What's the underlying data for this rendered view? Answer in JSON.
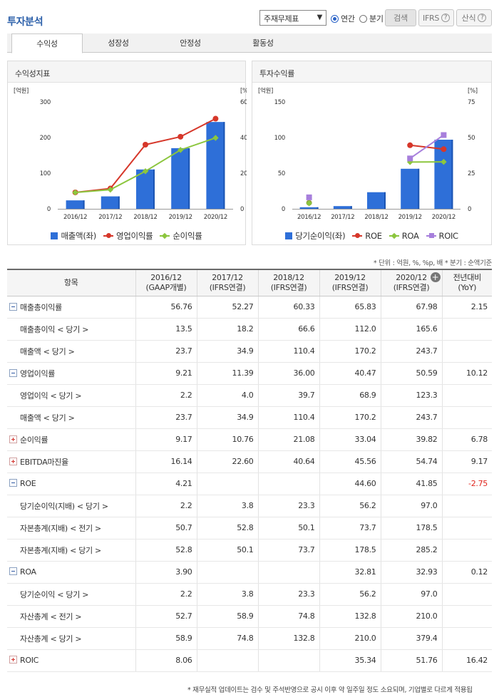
{
  "header": {
    "title": "투자분석",
    "select_value": "주재무제표",
    "radio_annual": "연간",
    "radio_quarter": "분기",
    "search_label": "검색",
    "ifrs_label": "IFRS",
    "formula_label": "산식"
  },
  "tabs": [
    "수익성",
    "성장성",
    "안정성",
    "활동성"
  ],
  "panels": {
    "left_title": "수익성지표",
    "right_title": "투자수익률"
  },
  "colors": {
    "bar": "#2e6fd8",
    "red": "#d6372a",
    "green": "#8cc63e",
    "purple": "#a77fdc",
    "olive": "#8c9a3a"
  },
  "chart_data": [
    {
      "type": "bar",
      "categories": [
        "2016/12",
        "2017/12",
        "2018/12",
        "2019/12",
        "2020/12"
      ],
      "left_unit": "[억원]",
      "right_unit": "[%]",
      "ylim_left": [
        0,
        300
      ],
      "ylim_right": [
        0,
        60
      ],
      "yticks_left": [
        0,
        100,
        200,
        300
      ],
      "yticks_right": [
        0,
        20,
        40,
        60
      ],
      "legend_position": "bottom",
      "bars": {
        "name": "매출액(좌)",
        "values": [
          23.7,
          34.9,
          110.4,
          170.2,
          243.7
        ]
      },
      "lines": [
        {
          "name": "영업이익률",
          "values": [
            9.21,
            11.39,
            36.0,
            40.47,
            50.59
          ],
          "color": "#d6372a",
          "marker": "circle"
        },
        {
          "name": "순이익률",
          "values": [
            9.17,
            10.76,
            21.08,
            33.04,
            39.82
          ],
          "color": "#8cc63e",
          "marker": "diamond"
        }
      ]
    },
    {
      "type": "bar",
      "categories": [
        "2016/12",
        "2017/12",
        "2018/12",
        "2019/12",
        "2020/12"
      ],
      "left_unit": "[억원]",
      "right_unit": "[%]",
      "ylim_left": [
        0,
        150
      ],
      "ylim_right": [
        0,
        75
      ],
      "yticks_left": [
        0,
        50,
        100,
        150
      ],
      "yticks_right": [
        0,
        25,
        50,
        75
      ],
      "legend_position": "bottom",
      "bars": {
        "name": "당기순이익(좌)",
        "values": [
          2.2,
          3.8,
          23.3,
          56.2,
          97.0
        ]
      },
      "lines": [
        {
          "name": "ROE",
          "values": [
            4.21,
            null,
            null,
            44.6,
            41.85
          ],
          "color": "#d6372a",
          "marker": "circle"
        },
        {
          "name": "ROA",
          "values": [
            3.9,
            null,
            null,
            32.81,
            32.93
          ],
          "color": "#8cc63e",
          "marker": "diamond"
        },
        {
          "name": "ROIC",
          "values": [
            8.06,
            null,
            null,
            35.34,
            51.76
          ],
          "color": "#a77fdc",
          "marker": "square"
        }
      ]
    }
  ],
  "notes": {
    "unit": "* 단위 : 억원, %, %p, 배   * 분기 : 순액기준",
    "footer": "* 재무실적 업데이트는 검수 및 주석반영으로 공시 이후 약 일주일 정도 소요되며, 기업별로 다르게 적용됩"
  },
  "table": {
    "headers": [
      {
        "l1": "항목",
        "l2": ""
      },
      {
        "l1": "2016/12",
        "l2": "(GAAP개별)"
      },
      {
        "l1": "2017/12",
        "l2": "(IFRS연결)"
      },
      {
        "l1": "2018/12",
        "l2": "(IFRS연결)"
      },
      {
        "l1": "2019/12",
        "l2": "(IFRS연결)"
      },
      {
        "l1": "2020/12",
        "l2": "(IFRS연결)"
      },
      {
        "l1": "전년대비",
        "l2": "(YoY)"
      }
    ],
    "rows": [
      {
        "label": "매출총이익률",
        "kind": "minus",
        "cells": [
          "56.76",
          "52.27",
          "60.33",
          "65.83",
          "67.98",
          "2.15"
        ]
      },
      {
        "label": "매출총이익 < 당기 >",
        "kind": "sub",
        "cells": [
          "13.5",
          "18.2",
          "66.6",
          "112.0",
          "165.6",
          ""
        ]
      },
      {
        "label": "매출액 < 당기 >",
        "kind": "sub",
        "cells": [
          "23.7",
          "34.9",
          "110.4",
          "170.2",
          "243.7",
          ""
        ]
      },
      {
        "label": "영업이익률",
        "kind": "minus",
        "cells": [
          "9.21",
          "11.39",
          "36.00",
          "40.47",
          "50.59",
          "10.12"
        ]
      },
      {
        "label": "영업이익 < 당기 >",
        "kind": "sub",
        "cells": [
          "2.2",
          "4.0",
          "39.7",
          "68.9",
          "123.3",
          ""
        ]
      },
      {
        "label": "매출액 < 당기 >",
        "kind": "sub",
        "cells": [
          "23.7",
          "34.9",
          "110.4",
          "170.2",
          "243.7",
          ""
        ]
      },
      {
        "label": "순이익률",
        "kind": "plus",
        "cells": [
          "9.17",
          "10.76",
          "21.08",
          "33.04",
          "39.82",
          "6.78"
        ]
      },
      {
        "label": "EBITDA마진율",
        "kind": "plus",
        "cells": [
          "16.14",
          "22.60",
          "40.64",
          "45.56",
          "54.74",
          "9.17"
        ]
      },
      {
        "label": "ROE",
        "kind": "minus",
        "cells": [
          "4.21",
          "",
          "",
          "44.60",
          "41.85",
          "-2.75"
        ]
      },
      {
        "label": "당기순이익(지배) < 당기 >",
        "kind": "sub",
        "cells": [
          "2.2",
          "3.8",
          "23.3",
          "56.2",
          "97.0",
          ""
        ]
      },
      {
        "label": "자본총계(지배) < 전기 >",
        "kind": "sub",
        "cells": [
          "50.7",
          "52.8",
          "50.1",
          "73.7",
          "178.5",
          ""
        ]
      },
      {
        "label": "자본총계(지배) < 당기 >",
        "kind": "sub",
        "cells": [
          "52.8",
          "50.1",
          "73.7",
          "178.5",
          "285.2",
          ""
        ]
      },
      {
        "label": "ROA",
        "kind": "minus",
        "cells": [
          "3.90",
          "",
          "",
          "32.81",
          "32.93",
          "0.12"
        ]
      },
      {
        "label": "당기순이익 < 당기 >",
        "kind": "sub",
        "cells": [
          "2.2",
          "3.8",
          "23.3",
          "56.2",
          "97.0",
          ""
        ]
      },
      {
        "label": "자산총계 < 전기 >",
        "kind": "sub",
        "cells": [
          "52.7",
          "58.9",
          "74.8",
          "132.8",
          "210.0",
          ""
        ]
      },
      {
        "label": "자산총계 < 당기 >",
        "kind": "sub",
        "cells": [
          "58.9",
          "74.8",
          "132.8",
          "210.0",
          "379.4",
          ""
        ]
      },
      {
        "label": "ROIC",
        "kind": "plus",
        "cells": [
          "8.06",
          "",
          "",
          "35.34",
          "51.76",
          "16.42"
        ]
      }
    ]
  }
}
